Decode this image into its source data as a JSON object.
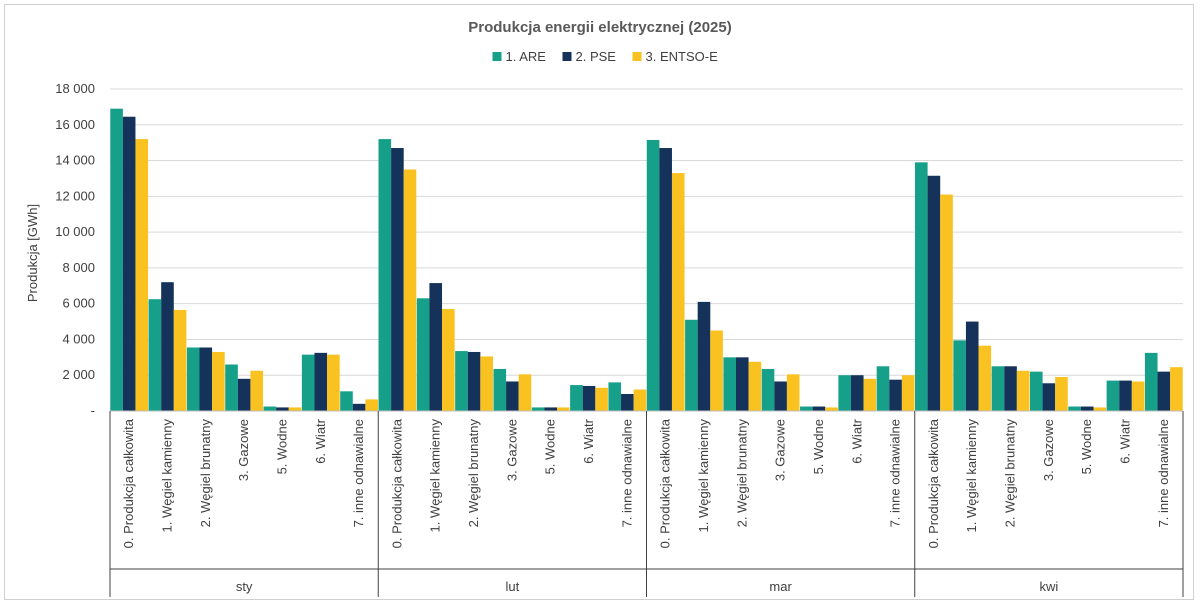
{
  "chart_data": {
    "type": "bar",
    "title": "Produkcja energii elektrycznej (2025)",
    "ylabel": "Produkcja [GWh]",
    "xlabel": "",
    "ylim": [
      0,
      18000
    ],
    "yticks": [
      0,
      2000,
      4000,
      6000,
      8000,
      10000,
      12000,
      14000,
      16000,
      18000
    ],
    "ytick_labels": [
      "-",
      "2 000",
      "4 000",
      "6 000",
      "8 000",
      "10 000",
      "12 000",
      "14 000",
      "16 000",
      "18 000"
    ],
    "grid": true,
    "legend_position": "top-center",
    "groups": [
      "sty",
      "lut",
      "mar",
      "kwi"
    ],
    "categories": [
      "0. Produkcja całkowita",
      "1. Węgiel kamienny",
      "2. Węgiel brunatny",
      "3. Gazowe",
      "5. Wodne",
      "6. Wiatr",
      "7. inne odnawialne"
    ],
    "series": [
      {
        "name": "1. ARE",
        "color": "#16a08a",
        "values": [
          [
            16900,
            6250,
            3550,
            2600,
            250,
            3150,
            1100
          ],
          [
            15200,
            6300,
            3350,
            2350,
            200,
            1450,
            1600
          ],
          [
            15150,
            5100,
            3000,
            2350,
            250,
            2000,
            2500
          ],
          [
            13900,
            3950,
            2500,
            2200,
            250,
            1700,
            3250
          ]
        ]
      },
      {
        "name": "2. PSE",
        "color": "#14325a",
        "values": [
          [
            16450,
            7200,
            3550,
            1800,
            200,
            3250,
            400
          ],
          [
            14700,
            7150,
            3300,
            1650,
            200,
            1400,
            950
          ],
          [
            14700,
            6100,
            3000,
            1650,
            250,
            2000,
            1750
          ],
          [
            13150,
            5000,
            2500,
            1550,
            250,
            1700,
            2200
          ]
        ]
      },
      {
        "name": "3. ENTSO-E",
        "color": "#f9c220",
        "values": [
          [
            15200,
            5650,
            3300,
            2250,
            200,
            3150,
            650
          ],
          [
            13500,
            5700,
            3050,
            2050,
            200,
            1300,
            1200
          ],
          [
            13300,
            4500,
            2750,
            2050,
            200,
            1800,
            2000
          ],
          [
            12100,
            3650,
            2250,
            1900,
            200,
            1650,
            2450
          ]
        ]
      }
    ]
  }
}
